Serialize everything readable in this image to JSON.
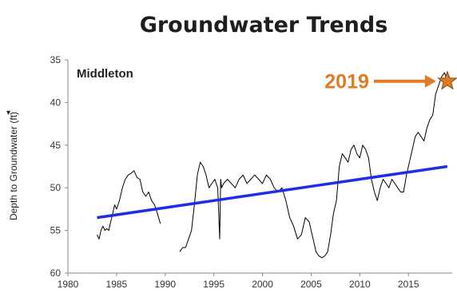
{
  "chart_data": {
    "type": "line",
    "title": "Groundwater Trends",
    "ylabel": "Depth to Groundwater (ft)",
    "xlabel": "",
    "xlim": [
      1980,
      2019.5
    ],
    "ylim": [
      35,
      60
    ],
    "y_inverted": true,
    "grid": false,
    "x_ticks": [
      "1980",
      "1985",
      "1990",
      "1995",
      "2000",
      "2005",
      "2010",
      "2015"
    ],
    "y_ticks": [
      "35",
      "40",
      "45",
      "50",
      "55",
      "60"
    ],
    "annotation": "Middleton",
    "callout": {
      "label": "2019",
      "x": 2019,
      "y": 37.5
    },
    "colors": {
      "measured": "#000000",
      "trend": "#1f2ee6",
      "callout": "#e07a24"
    },
    "series": [
      {
        "x": [
          1983.0,
          1983.2,
          1983.4,
          1983.6,
          1983.8,
          1984.0,
          1984.2,
          1984.5,
          1984.8,
          1985.0,
          1985.3,
          1985.6,
          1985.9,
          1986.2,
          1986.5,
          1986.8,
          1987.1,
          1987.4,
          1987.7,
          1988.0,
          1988.3,
          1988.6,
          1988.9,
          1989.2,
          1989.5
        ],
        "y": [
          55.5,
          56.0,
          55.0,
          54.5,
          55.0,
          54.8,
          55.0,
          53.5,
          52.0,
          52.5,
          51.5,
          50.0,
          49.0,
          48.5,
          48.3,
          48.0,
          48.8,
          49.0,
          50.5,
          51.0,
          50.5,
          51.5,
          52.0,
          53.0,
          54.2
        ]
      },
      {
        "x": [
          1991.5,
          1991.8,
          1992.1,
          1992.4,
          1992.7,
          1993.0,
          1993.3,
          1993.6,
          1993.9,
          1994.2,
          1994.5,
          1994.8,
          1995.1,
          1995.4,
          1995.6,
          1995.7,
          1995.8,
          1996.0,
          1996.4,
          1996.8,
          1997.2,
          1997.6,
          1998.0,
          1998.4,
          1998.8,
          1999.2,
          1999.6,
          2000.0,
          2000.4,
          2000.8,
          2001.2,
          2001.6,
          2002.0,
          2002.4,
          2002.8,
          2003.2,
          2003.6,
          2004.0,
          2004.4,
          2004.8,
          2005.0,
          2005.2,
          2005.5,
          2005.8,
          2006.1,
          2006.4,
          2006.7,
          2007.0,
          2007.3,
          2007.6,
          2007.9,
          2008.2,
          2008.5,
          2008.8,
          2009.1,
          2009.4,
          2009.7,
          2010.0,
          2010.3,
          2010.6,
          2010.9,
          2011.2,
          2011.5,
          2011.8,
          2012.1,
          2012.4,
          2012.7,
          2013.0,
          2013.3,
          2013.6,
          2013.9,
          2014.2,
          2014.5,
          2014.8,
          2015.1,
          2015.4,
          2015.7,
          2016.0,
          2016.3,
          2016.6,
          2016.9,
          2017.2,
          2017.5,
          2017.8,
          2018.1,
          2018.4,
          2018.7,
          2019.0
        ],
        "y": [
          57.5,
          57.0,
          57.0,
          56.0,
          55.0,
          52.0,
          48.5,
          47.0,
          47.5,
          48.5,
          50.0,
          49.5,
          49.0,
          50.0,
          56.0,
          49.0,
          50.0,
          49.5,
          49.0,
          49.5,
          50.0,
          49.0,
          48.5,
          49.5,
          49.0,
          48.5,
          49.0,
          49.5,
          48.5,
          49.0,
          50.0,
          50.5,
          50.0,
          51.5,
          53.5,
          54.5,
          56.0,
          55.5,
          53.5,
          54.0,
          55.0,
          56.0,
          57.5,
          58.0,
          58.2,
          58.0,
          57.5,
          55.5,
          53.0,
          51.5,
          47.5,
          46.0,
          46.5,
          47.0,
          45.5,
          45.0,
          46.0,
          46.5,
          45.0,
          45.5,
          46.5,
          49.0,
          50.5,
          51.5,
          50.0,
          49.0,
          49.5,
          50.0,
          49.0,
          49.5,
          50.0,
          50.5,
          50.5,
          48.5,
          47.0,
          45.5,
          44.0,
          43.5,
          44.0,
          44.5,
          43.0,
          42.0,
          41.5,
          39.0,
          38.0,
          37.0,
          36.5,
          37.5
        ]
      },
      {
        "name": "trend",
        "x": [
          1983,
          2019
        ],
        "y": [
          53.5,
          47.5
        ]
      }
    ]
  }
}
